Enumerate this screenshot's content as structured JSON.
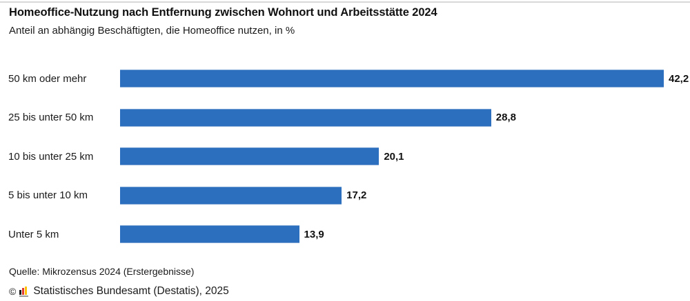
{
  "header": {
    "title": "Homeoffice-Nutzung nach Entfernung zwischen Wohnort und Arbeitsstätte 2024",
    "subtitle": "Anteil an abhängig Beschäftigten, die Homeoffice nutzen, in %"
  },
  "chart_data": {
    "type": "bar",
    "orientation": "horizontal",
    "title": "Homeoffice-Nutzung nach Entfernung zwischen Wohnort und Arbeitsstätte 2024",
    "subtitle": "Anteil an abhängig Beschäftigten, die Homeoffice nutzen, in %",
    "categories": [
      "50 km oder mehr",
      "25 bis unter 50 km",
      "10 bis unter 25 km",
      "5 bis unter 10 km",
      "Unter 5 km"
    ],
    "values": [
      42.2,
      28.8,
      20.1,
      17.2,
      13.9
    ],
    "value_labels": [
      "42,2",
      "28,8",
      "20,1",
      "17,2",
      "13,9"
    ],
    "unit": "%",
    "xlabel": "",
    "ylabel": "",
    "xlim": [
      0,
      42.2
    ],
    "grid": false,
    "legend": false,
    "bar_color": "#2d6fbf"
  },
  "footer": {
    "source": "Quelle: Mikrozensus 2024 (Erstergebnisse)",
    "copyright_symbol": "©",
    "copyright_text": "Statistisches Bundesamt (Destatis), 2025"
  },
  "icons": {
    "destatis_logo": "mini-bar-chart-black-red-gold"
  }
}
